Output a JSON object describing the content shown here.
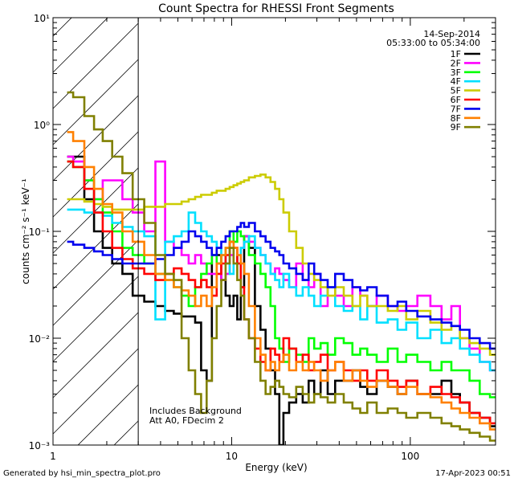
{
  "page": {
    "generated_by": "Generated by hsi_min_spectra_plot.pro",
    "generated_at": "17-Apr-2023 00:51"
  },
  "chart_data": {
    "type": "line",
    "title": "Count Spectra for RHESSI Front Segments",
    "xlabel": "Energy (keV)",
    "ylabel": "counts cm⁻² s⁻¹ keV⁻¹",
    "xscale": "log",
    "yscale": "log",
    "xlim": [
      1,
      300
    ],
    "ylim": [
      0.001,
      10
    ],
    "x_tick_labels": [
      "1",
      "10",
      "100"
    ],
    "y_tick_labels": [
      "10⁻³",
      "10⁻²",
      "10⁻¹",
      "10⁰",
      "10¹"
    ],
    "date": "14-Sep-2014",
    "time_range": "05:33:00 to 05:34:00",
    "annotations": [
      "Includes Background",
      "Att A0, FDecim 2"
    ],
    "shaded_region_keV": [
      1,
      3
    ],
    "legend_position": "top-right",
    "energies_keV": [
      1.2,
      1.4,
      1.6,
      1.8,
      2.0,
      2.3,
      2.6,
      3.0,
      3.5,
      4.0,
      4.5,
      5.0,
      5.5,
      6.0,
      6.5,
      7.0,
      7.5,
      8.0,
      8.5,
      9.0,
      9.5,
      10.0,
      10.5,
      11.0,
      11.5,
      12.0,
      13.0,
      14.0,
      15.0,
      16.0,
      17.0,
      18.0,
      19.0,
      20.0,
      22.0,
      24.0,
      26.0,
      28.0,
      30.0,
      33.0,
      36.0,
      40.0,
      45.0,
      50.0,
      55.0,
      60.0,
      70.0,
      80.0,
      90.0,
      100.0,
      120.0,
      140.0,
      160.0,
      180.0,
      200.0,
      230.0,
      260.0,
      300.0
    ],
    "series": [
      {
        "name": "1F",
        "color": "#000000",
        "values": [
          0.5,
          0.5,
          0.2,
          0.1,
          0.07,
          0.05,
          0.04,
          0.025,
          0.022,
          0.02,
          0.018,
          0.017,
          0.016,
          0.016,
          0.014,
          0.005,
          0.004,
          0.06,
          0.06,
          0.035,
          0.025,
          0.02,
          0.025,
          0.015,
          0.03,
          0.09,
          0.07,
          0.02,
          0.012,
          0.008,
          0.005,
          0.003,
          0.001,
          0.002,
          0.0025,
          0.003,
          0.0025,
          0.004,
          0.003,
          0.005,
          0.003,
          0.004,
          0.004,
          0.005,
          0.0035,
          0.003,
          0.004,
          0.0035,
          0.003,
          0.004,
          0.003,
          0.003,
          0.004,
          0.003,
          0.0025,
          0.002,
          0.0018,
          0.0015
        ]
      },
      {
        "name": "2F",
        "color": "#ff00ff",
        "values": [
          0.5,
          0.45,
          0.3,
          0.2,
          0.3,
          0.3,
          0.2,
          0.15,
          0.1,
          0.45,
          0.08,
          0.07,
          0.06,
          0.05,
          0.06,
          0.05,
          0.04,
          0.04,
          0.05,
          0.035,
          0.04,
          0.06,
          0.07,
          0.05,
          0.07,
          0.09,
          0.08,
          0.07,
          0.06,
          0.05,
          0.04,
          0.045,
          0.04,
          0.035,
          0.03,
          0.05,
          0.035,
          0.03,
          0.04,
          0.02,
          0.03,
          0.025,
          0.02,
          0.03,
          0.025,
          0.02,
          0.025,
          0.02,
          0.018,
          0.02,
          0.025,
          0.02,
          0.015,
          0.02,
          0.01,
          0.008,
          0.006,
          0.005
        ]
      },
      {
        "name": "3F",
        "color": "#00ff00",
        "values": [
          0.45,
          0.4,
          0.3,
          0.2,
          0.15,
          0.1,
          0.07,
          0.06,
          0.05,
          0.04,
          0.035,
          0.03,
          0.025,
          0.02,
          0.03,
          0.04,
          0.05,
          0.06,
          0.05,
          0.06,
          0.07,
          0.1,
          0.08,
          0.1,
          0.09,
          0.08,
          0.06,
          0.05,
          0.04,
          0.03,
          0.02,
          0.01,
          0.008,
          0.006,
          0.008,
          0.007,
          0.006,
          0.01,
          0.008,
          0.009,
          0.007,
          0.01,
          0.009,
          0.007,
          0.008,
          0.007,
          0.006,
          0.008,
          0.006,
          0.007,
          0.006,
          0.005,
          0.006,
          0.005,
          0.005,
          0.004,
          0.003,
          0.0028
        ]
      },
      {
        "name": "4F",
        "color": "#00e0ff",
        "values": [
          0.16,
          0.16,
          0.15,
          0.15,
          0.14,
          0.12,
          0.11,
          0.1,
          0.09,
          0.015,
          0.08,
          0.09,
          0.1,
          0.15,
          0.12,
          0.1,
          0.09,
          0.08,
          0.07,
          0.06,
          0.05,
          0.04,
          0.05,
          0.06,
          0.07,
          0.08,
          0.09,
          0.07,
          0.06,
          0.05,
          0.04,
          0.035,
          0.03,
          0.04,
          0.03,
          0.025,
          0.03,
          0.025,
          0.02,
          0.025,
          0.03,
          0.02,
          0.018,
          0.02,
          0.015,
          0.02,
          0.014,
          0.015,
          0.012,
          0.014,
          0.01,
          0.012,
          0.009,
          0.01,
          0.008,
          0.007,
          0.006,
          0.005
        ]
      },
      {
        "name": "5F",
        "color": "#cccc00",
        "values": [
          0.2,
          0.2,
          0.19,
          0.18,
          0.17,
          0.16,
          0.16,
          0.16,
          0.17,
          0.17,
          0.18,
          0.18,
          0.19,
          0.2,
          0.21,
          0.22,
          0.22,
          0.23,
          0.24,
          0.24,
          0.25,
          0.26,
          0.27,
          0.28,
          0.29,
          0.3,
          0.32,
          0.33,
          0.34,
          0.32,
          0.29,
          0.25,
          0.2,
          0.15,
          0.1,
          0.07,
          0.05,
          0.04,
          0.035,
          0.03,
          0.025,
          0.03,
          0.025,
          0.02,
          0.025,
          0.02,
          0.02,
          0.018,
          0.02,
          0.015,
          0.018,
          0.014,
          0.012,
          0.013,
          0.01,
          0.009,
          0.008,
          0.007
        ]
      },
      {
        "name": "6F",
        "color": "#ff0000",
        "values": [
          0.45,
          0.4,
          0.25,
          0.15,
          0.1,
          0.07,
          0.055,
          0.045,
          0.04,
          0.035,
          0.04,
          0.045,
          0.04,
          0.035,
          0.03,
          0.035,
          0.03,
          0.025,
          0.04,
          0.05,
          0.06,
          0.08,
          0.07,
          0.05,
          0.03,
          0.015,
          0.01,
          0.008,
          0.006,
          0.005,
          0.008,
          0.007,
          0.006,
          0.01,
          0.008,
          0.006,
          0.007,
          0.005,
          0.006,
          0.007,
          0.005,
          0.006,
          0.005,
          0.004,
          0.005,
          0.004,
          0.005,
          0.004,
          0.0035,
          0.004,
          0.003,
          0.0035,
          0.003,
          0.0028,
          0.0025,
          0.002,
          0.0018,
          0.0016
        ]
      },
      {
        "name": "7F",
        "color": "#0000ee",
        "values": [
          0.08,
          0.075,
          0.07,
          0.065,
          0.06,
          0.055,
          0.05,
          0.05,
          0.05,
          0.055,
          0.06,
          0.07,
          0.08,
          0.1,
          0.09,
          0.08,
          0.07,
          0.06,
          0.07,
          0.08,
          0.09,
          0.1,
          0.1,
          0.11,
          0.12,
          0.11,
          0.12,
          0.1,
          0.09,
          0.08,
          0.07,
          0.065,
          0.06,
          0.05,
          0.045,
          0.04,
          0.035,
          0.05,
          0.04,
          0.035,
          0.03,
          0.04,
          0.035,
          0.03,
          0.028,
          0.03,
          0.025,
          0.02,
          0.022,
          0.018,
          0.016,
          0.015,
          0.014,
          0.013,
          0.012,
          0.01,
          0.009,
          0.008
        ]
      },
      {
        "name": "8F",
        "color": "#ff8000",
        "values": [
          0.85,
          0.7,
          0.4,
          0.25,
          0.18,
          0.15,
          0.1,
          0.08,
          0.06,
          0.04,
          0.035,
          0.03,
          0.028,
          0.025,
          0.02,
          0.025,
          0.02,
          0.03,
          0.05,
          0.06,
          0.07,
          0.08,
          0.07,
          0.06,
          0.05,
          0.04,
          0.02,
          0.01,
          0.007,
          0.005,
          0.006,
          0.005,
          0.006,
          0.007,
          0.005,
          0.006,
          0.005,
          0.006,
          0.005,
          0.004,
          0.005,
          0.006,
          0.004,
          0.005,
          0.004,
          0.0035,
          0.004,
          0.0035,
          0.003,
          0.0035,
          0.003,
          0.0028,
          0.0025,
          0.0022,
          0.002,
          0.0018,
          0.0016,
          0.0014
        ]
      },
      {
        "name": "9F",
        "color": "#808000",
        "values": [
          2.0,
          1.8,
          1.2,
          0.9,
          0.7,
          0.5,
          0.35,
          0.2,
          0.12,
          0.06,
          0.04,
          0.035,
          0.01,
          0.005,
          0.003,
          0.002,
          0.004,
          0.01,
          0.02,
          0.035,
          0.05,
          0.07,
          0.05,
          0.035,
          0.025,
          0.015,
          0.01,
          0.006,
          0.004,
          0.003,
          0.0035,
          0.004,
          0.0035,
          0.003,
          0.0028,
          0.0035,
          0.003,
          0.0025,
          0.003,
          0.0028,
          0.0025,
          0.003,
          0.0025,
          0.0022,
          0.002,
          0.0025,
          0.002,
          0.0022,
          0.002,
          0.0018,
          0.002,
          0.0018,
          0.0016,
          0.0015,
          0.0014,
          0.0013,
          0.0012,
          0.0011
        ]
      }
    ]
  }
}
